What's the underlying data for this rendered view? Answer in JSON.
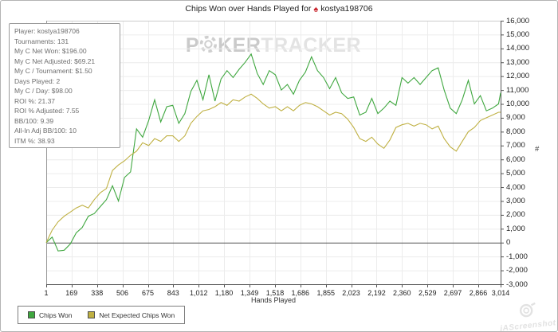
{
  "window": {
    "title_prefix": "Chips Won over Hands Played for",
    "title_player": "kostya198706"
  },
  "stats_box": {
    "lines": [
      "Player: kostya198706",
      "Tournaments: 131",
      "My C Net Won: $196.00",
      "My C Net Adjusted: $69.21",
      "My C / Tournament: $1.50",
      "Days Played: 2",
      "My C / Day: $98.00",
      "ROI %: 21.37",
      "ROI % Adjusted: 7.55",
      "BB/100: 9.39",
      "All-In Adj BB/100: 10",
      "ITM %: 38.93"
    ]
  },
  "watermark": {
    "p1": "P",
    "p2": "KER",
    "p3": "TRACKER"
  },
  "corner_watermark": {
    "text": "jAScreenshot"
  },
  "chart_data": {
    "type": "line",
    "title": "Chips Won over Hands Played for kostya198706",
    "xlabel": "Hands Played",
    "ylabel": "#",
    "grid": true,
    "legend_position": "bottom-left",
    "xlim": [
      1,
      3014
    ],
    "ylim": [
      -3000,
      16000
    ],
    "x_ticks": [
      1,
      169,
      338,
      506,
      675,
      843,
      1012,
      1180,
      1349,
      1518,
      1686,
      1855,
      2023,
      2192,
      2360,
      2529,
      2697,
      2866,
      3014
    ],
    "x_tick_labels": [
      "1",
      "169",
      "338",
      "506",
      "675",
      "843",
      "1,012",
      "1,180",
      "1,349",
      "1,518",
      "1,686",
      "1,855",
      "2,023",
      "2,192",
      "2,360",
      "2,529",
      "2,697",
      "2,866",
      "3,014"
    ],
    "y_ticks": [
      -3000,
      -2000,
      -1000,
      0,
      1000,
      2000,
      3000,
      4000,
      5000,
      6000,
      7000,
      8000,
      9000,
      10000,
      11000,
      12000,
      13000,
      14000,
      15000,
      16000
    ],
    "y_tick_labels": [
      "-3,000",
      "-2,000",
      "-1,000",
      "0",
      "1,000",
      "2,000",
      "3,000",
      "4,000",
      "5,000",
      "6,000",
      "7,000",
      "8,000",
      "9,000",
      "10,000",
      "11,000",
      "12,000",
      "13,000",
      "14,000",
      "15,000",
      "16,000"
    ],
    "x": [
      1,
      40,
      80,
      120,
      160,
      200,
      240,
      280,
      320,
      360,
      400,
      440,
      480,
      520,
      560,
      600,
      640,
      680,
      720,
      760,
      800,
      840,
      880,
      920,
      960,
      1000,
      1040,
      1080,
      1120,
      1160,
      1200,
      1240,
      1280,
      1320,
      1360,
      1400,
      1440,
      1480,
      1520,
      1560,
      1600,
      1640,
      1680,
      1720,
      1760,
      1800,
      1840,
      1880,
      1920,
      1960,
      2000,
      2040,
      2080,
      2120,
      2160,
      2200,
      2240,
      2280,
      2320,
      2360,
      2400,
      2440,
      2480,
      2520,
      2560,
      2600,
      2640,
      2680,
      2720,
      2760,
      2800,
      2840,
      2880,
      2920,
      2960,
      3000,
      3014
    ],
    "series": [
      {
        "name": "Chips Won",
        "color": "#3fa73f",
        "values": [
          0,
          400,
          -600,
          -550,
          -100,
          700,
          1100,
          1900,
          2100,
          2600,
          3100,
          4100,
          3000,
          4700,
          5100,
          8200,
          7600,
          8800,
          10300,
          8700,
          9800,
          9900,
          8600,
          9300,
          10900,
          11700,
          10300,
          12100,
          10200,
          11800,
          12400,
          11900,
          12500,
          13000,
          13600,
          12200,
          11400,
          12400,
          12100,
          11000,
          11400,
          10700,
          11700,
          12300,
          13400,
          12400,
          11900,
          11100,
          11900,
          10800,
          10400,
          10500,
          9200,
          9400,
          10400,
          9300,
          9700,
          10200,
          9900,
          11900,
          11500,
          11900,
          11400,
          11900,
          12400,
          12600,
          11000,
          9700,
          9300,
          10300,
          11700,
          10000,
          10600,
          9500,
          9700,
          10000,
          10800
        ]
      },
      {
        "name": "Net Expected Chips Won",
        "color": "#bfb042",
        "values": [
          0,
          900,
          1500,
          1900,
          2200,
          2500,
          2700,
          2500,
          3100,
          3600,
          3900,
          5200,
          5600,
          5900,
          6300,
          6600,
          7200,
          7000,
          7500,
          7300,
          7700,
          7700,
          7300,
          7700,
          8600,
          9100,
          9500,
          9600,
          9800,
          10100,
          9900,
          10300,
          10200,
          10500,
          10700,
          10400,
          10000,
          9700,
          9800,
          9500,
          9800,
          9500,
          9900,
          10100,
          10000,
          9800,
          9500,
          9200,
          9400,
          9300,
          8900,
          8300,
          7500,
          7300,
          7600,
          7100,
          6800,
          7400,
          8300,
          8500,
          8600,
          8400,
          8600,
          8500,
          8200,
          8400,
          7500,
          6900,
          6600,
          7300,
          8000,
          8300,
          8800,
          9000,
          9200,
          9400,
          9400
        ]
      }
    ]
  }
}
